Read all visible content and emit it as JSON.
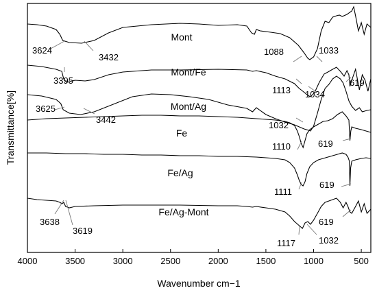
{
  "chart_data": {
    "type": "line",
    "xlabel": "Wavenumber cm−1",
    "ylabel": "Transmittance[%]",
    "xlim": [
      4000,
      400
    ],
    "x_reversed": true,
    "xticks": [
      4000,
      3500,
      3000,
      2500,
      2000,
      1500,
      1000,
      500
    ],
    "grid": false,
    "series": [
      {
        "name": "Mont",
        "points": [
          [
            4000,
            30
          ],
          [
            3900,
            31
          ],
          [
            3800,
            33
          ],
          [
            3700,
            38
          ],
          [
            3660,
            45
          ],
          [
            3630,
            54
          ],
          [
            3560,
            57
          ],
          [
            3432,
            58
          ],
          [
            3300,
            54
          ],
          [
            3150,
            43
          ],
          [
            3000,
            35
          ],
          [
            2700,
            31
          ],
          [
            2400,
            29
          ],
          [
            2200,
            30
          ],
          [
            2000,
            32
          ],
          [
            1800,
            31
          ],
          [
            1700,
            33
          ],
          [
            1650,
            43
          ],
          [
            1620,
            45
          ],
          [
            1600,
            38
          ],
          [
            1560,
            40
          ],
          [
            1450,
            42
          ],
          [
            1350,
            44
          ],
          [
            1250,
            50
          ],
          [
            1160,
            61
          ],
          [
            1100,
            72
          ],
          [
            1060,
            80
          ],
          [
            1040,
            82
          ],
          [
            1000,
            78
          ],
          [
            960,
            66
          ],
          [
            920,
            40
          ],
          [
            880,
            26
          ],
          [
            840,
            28
          ],
          [
            800,
            20
          ],
          [
            760,
            18
          ],
          [
            730,
            17
          ],
          [
            700,
            19
          ],
          [
            650,
            16
          ],
          [
            600,
            11
          ],
          [
            580,
            5
          ],
          [
            560,
            18
          ],
          [
            530,
            40
          ],
          [
            500,
            28
          ],
          [
            470,
            45
          ],
          [
            440,
            30
          ],
          [
            400,
            35
          ]
        ],
        "annotations": [
          {
            "label": "3624",
            "x": 3624
          },
          {
            "label": "3432",
            "x": 3432
          },
          {
            "label": "1088",
            "x": 1088
          },
          {
            "label": "1033",
            "x": 1033
          }
        ]
      },
      {
        "name": "Mont/Fe",
        "points": [
          [
            4000,
            90
          ],
          [
            3850,
            92
          ],
          [
            3700,
            96
          ],
          [
            3640,
            99
          ],
          [
            3620,
            110
          ],
          [
            3590,
            115
          ],
          [
            3500,
            112
          ],
          [
            3395,
            113
          ],
          [
            3300,
            111
          ],
          [
            3150,
            104
          ],
          [
            3000,
            100
          ],
          [
            2700,
            97
          ],
          [
            2400,
            97
          ],
          [
            2000,
            96
          ],
          [
            1700,
            97
          ],
          [
            1640,
            99
          ],
          [
            1600,
            98
          ],
          [
            1500,
            101
          ],
          [
            1400,
            106
          ],
          [
            1300,
            110
          ],
          [
            1200,
            117
          ],
          [
            1150,
            124
          ],
          [
            1113,
            128
          ],
          [
            1060,
            134
          ],
          [
            1034,
            136
          ],
          [
            990,
            130
          ],
          [
            940,
            115
          ],
          [
            890,
            103
          ],
          [
            850,
            100
          ],
          [
            800,
            96
          ],
          [
            760,
            93
          ],
          [
            720,
            99
          ],
          [
            680,
            106
          ],
          [
            650,
            98
          ],
          [
            630,
            104
          ],
          [
            619,
            121
          ],
          [
            600,
            112
          ],
          [
            560,
            96
          ],
          [
            520,
            126
          ],
          [
            490,
            104
          ],
          [
            460,
            112
          ],
          [
            430,
            128
          ],
          [
            400,
            110
          ]
        ]
      },
      {
        "name": "Mont/Ag",
        "points": [
          [
            4000,
            133
          ],
          [
            3850,
            135
          ],
          [
            3700,
            140
          ],
          [
            3650,
            146
          ],
          [
            3625,
            155
          ],
          [
            3560,
            160
          ],
          [
            3442,
            162
          ],
          [
            3300,
            158
          ],
          [
            3100,
            147
          ],
          [
            2900,
            136
          ],
          [
            2700,
            132
          ],
          [
            2500,
            133
          ],
          [
            2300,
            136
          ],
          [
            2100,
            140
          ],
          [
            1900,
            148
          ],
          [
            1700,
            153
          ],
          [
            1640,
            158
          ],
          [
            1600,
            152
          ],
          [
            1500,
            162
          ],
          [
            1400,
            168
          ],
          [
            1300,
            173
          ],
          [
            1200,
            177
          ],
          [
            1150,
            180
          ],
          [
            1100,
            183
          ],
          [
            1050,
            185
          ],
          [
            1032,
            186
          ],
          [
            1000,
            179
          ],
          [
            960,
            160
          ],
          [
            920,
            140
          ],
          [
            880,
            124
          ],
          [
            840,
            118
          ],
          [
            800,
            110
          ],
          [
            760,
            106
          ],
          [
            720,
            110
          ],
          [
            690,
            116
          ],
          [
            660,
            128
          ],
          [
            630,
            142
          ],
          [
            600,
            150
          ],
          [
            560,
            156
          ],
          [
            520,
            152
          ],
          [
            490,
            158
          ],
          [
            440,
            156
          ],
          [
            400,
            155
          ]
        ]
      },
      {
        "name": "Fe",
        "points": [
          [
            4000,
            170
          ],
          [
            3800,
            168
          ],
          [
            3600,
            167
          ],
          [
            3400,
            166
          ],
          [
            3200,
            165
          ],
          [
            3000,
            164
          ],
          [
            2800,
            163
          ],
          [
            2600,
            163
          ],
          [
            2400,
            164
          ],
          [
            2200,
            164
          ],
          [
            2000,
            165
          ],
          [
            1800,
            166
          ],
          [
            1600,
            168
          ],
          [
            1400,
            170
          ],
          [
            1300,
            172
          ],
          [
            1250,
            174
          ],
          [
            1200,
            178
          ],
          [
            1170,
            186
          ],
          [
            1150,
            194
          ],
          [
            1130,
            204
          ],
          [
            1110,
            210
          ],
          [
            1090,
            200
          ],
          [
            1070,
            190
          ],
          [
            1040,
            184
          ],
          [
            1000,
            180
          ],
          [
            950,
            176
          ],
          [
            900,
            172
          ],
          [
            850,
            171
          ],
          [
            800,
            168
          ],
          [
            750,
            162
          ],
          [
            700,
            158
          ],
          [
            660,
            164
          ],
          [
            630,
            170
          ],
          [
            619,
            200
          ],
          [
            610,
            186
          ],
          [
            600,
            180
          ],
          [
            560,
            182
          ],
          [
            500,
            184
          ],
          [
            450,
            186
          ],
          [
            400,
            188
          ]
        ]
      },
      {
        "name": "Fe/Ag",
        "points": [
          [
            4000,
            218
          ],
          [
            3800,
            218
          ],
          [
            3600,
            219
          ],
          [
            3400,
            219
          ],
          [
            3200,
            220
          ],
          [
            3000,
            220
          ],
          [
            2800,
            221
          ],
          [
            2600,
            221
          ],
          [
            2400,
            222
          ],
          [
            2200,
            222
          ],
          [
            2000,
            223
          ],
          [
            1800,
            223
          ],
          [
            1600,
            224
          ],
          [
            1500,
            225
          ],
          [
            1400,
            226
          ],
          [
            1300,
            228
          ],
          [
            1250,
            232
          ],
          [
            1200,
            240
          ],
          [
            1170,
            250
          ],
          [
            1150,
            258
          ],
          [
            1130,
            264
          ],
          [
            1111,
            266
          ],
          [
            1090,
            260
          ],
          [
            1070,
            248
          ],
          [
            1040,
            238
          ],
          [
            1000,
            232
          ],
          [
            950,
            228
          ],
          [
            900,
            226
          ],
          [
            850,
            224
          ],
          [
            800,
            222
          ],
          [
            750,
            220
          ],
          [
            700,
            218
          ],
          [
            660,
            220
          ],
          [
            640,
            224
          ],
          [
            625,
            230
          ],
          [
            619,
            266
          ],
          [
            612,
            240
          ],
          [
            600,
            230
          ],
          [
            560,
            228
          ],
          [
            500,
            226
          ],
          [
            450,
            225
          ],
          [
            400,
            226
          ]
        ]
      },
      {
        "name": "Fe/Ag-Mont",
        "points": [
          [
            4000,
            284
          ],
          [
            3900,
            286
          ],
          [
            3800,
            287
          ],
          [
            3700,
            288
          ],
          [
            3660,
            290
          ],
          [
            3638,
            292
          ],
          [
            3625,
            291
          ],
          [
            3619,
            290
          ],
          [
            3600,
            296
          ],
          [
            3560,
            298
          ],
          [
            3500,
            296
          ],
          [
            3300,
            295
          ],
          [
            3000,
            294
          ],
          [
            2800,
            294
          ],
          [
            2400,
            294
          ],
          [
            2000,
            295
          ],
          [
            1800,
            295
          ],
          [
            1700,
            296
          ],
          [
            1640,
            297
          ],
          [
            1600,
            296
          ],
          [
            1500,
            298
          ],
          [
            1400,
            300
          ],
          [
            1300,
            304
          ],
          [
            1250,
            310
          ],
          [
            1200,
            318
          ],
          [
            1150,
            324
          ],
          [
            1117,
            328
          ],
          [
            1090,
            320
          ],
          [
            1060,
            318
          ],
          [
            1032,
            322
          ],
          [
            1000,
            316
          ],
          [
            960,
            306
          ],
          [
            920,
            296
          ],
          [
            880,
            290
          ],
          [
            840,
            288
          ],
          [
            800,
            286
          ],
          [
            760,
            284
          ],
          [
            720,
            290
          ],
          [
            690,
            298
          ],
          [
            660,
            290
          ],
          [
            640,
            296
          ],
          [
            619,
            304
          ],
          [
            600,
            306
          ],
          [
            560,
            296
          ],
          [
            530,
            288
          ],
          [
            500,
            304
          ],
          [
            470,
            292
          ],
          [
            440,
            306
          ],
          [
            400,
            300
          ]
        ]
      }
    ],
    "annotations": [
      {
        "label": "3624",
        "x": 3624
      },
      {
        "label": "3432",
        "x": 3432
      },
      {
        "label": "1088",
        "x": 1088
      },
      {
        "label": "1033",
        "x": 1033
      },
      {
        "label": "3395",
        "x": 3395
      },
      {
        "label": "1113",
        "x": 1113
      },
      {
        "label": "1034",
        "x": 1034
      },
      {
        "label": "619",
        "x": 619
      },
      {
        "label": "3625",
        "x": 3625
      },
      {
        "label": "3442",
        "x": 3442
      },
      {
        "label": "1032",
        "x": 1032
      },
      {
        "label": "1110",
        "x": 1110
      },
      {
        "label": "619",
        "x": 619
      },
      {
        "label": "1111",
        "x": 1111
      },
      {
        "label": "619",
        "x": 619
      },
      {
        "label": "3638",
        "x": 3638
      },
      {
        "label": "3619",
        "x": 3619
      },
      {
        "label": "1117",
        "x": 1117
      },
      {
        "label": "619",
        "x": 619
      },
      {
        "label": "1032",
        "x": 1032
      }
    ]
  }
}
